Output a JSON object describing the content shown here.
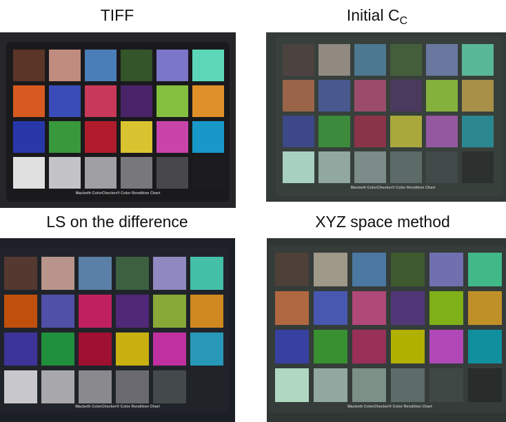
{
  "figure": {
    "caption_text": "Macbeth ColorChecker® Color Rendition Chart",
    "panels": [
      {
        "title": "TIFF",
        "background": "#262628",
        "card": "#1a1a1c",
        "patches": [
          "#5a3528",
          "#c08c80",
          "#4a7eb8",
          "#34552a",
          "#7c76c8",
          "#5cd8b8",
          "#d85a20",
          "#3a4cb8",
          "#c83858",
          "#4a2468",
          "#84c040",
          "#e09028",
          "#2838a8",
          "#38983c",
          "#b01c2c",
          "#d8c430",
          "#c844a8",
          "#1898c8",
          "#e0e0e0",
          "#c4c4c8",
          "#a0a0a4",
          "#78787c",
          "#48484c",
          "#1c1c1e"
        ]
      },
      {
        "title": "Initial C",
        "title_subscript": "C",
        "background": "#333a37",
        "card": "#38403c",
        "patches": [
          "#4c4240",
          "#908a80",
          "#4c7890",
          "#445e3c",
          "#6a78a0",
          "#58b898",
          "#9a6448",
          "#4a5890",
          "#9a4c6a",
          "#4a3a5e",
          "#84b03c",
          "#a89048",
          "#3c4888",
          "#3c8a3c",
          "#8a3448",
          "#a8a83c",
          "#9458a0",
          "#2c8890",
          "#a8d0c0",
          "#90a8a0",
          "#7c8c88",
          "#5c6a68",
          "#404a48",
          "#2c302e"
        ]
      },
      {
        "title": "LS on the difference",
        "background": "#1c2026",
        "card": "#20242a",
        "patches": [
          "#553830",
          "#b8948a",
          "#5a80a8",
          "#3c6040",
          "#9088c0",
          "#44c0a8",
          "#c0500c",
          "#5050a8",
          "#c02060",
          "#502878",
          "#88a838",
          "#d08820",
          "#3c3498",
          "#20903c",
          "#a01030",
          "#c8b010",
          "#c030a0",
          "#2898b8",
          "#c8c8cc",
          "#a8a8ac",
          "#8a8a8e",
          "#6a6a70",
          "#444a4c",
          "#202428"
        ]
      },
      {
        "title": "XYZ space method",
        "background": "#303634",
        "card": "#353c3a",
        "patches": [
          "#4c4038",
          "#a09888",
          "#4a78a0",
          "#405a30",
          "#7070b0",
          "#40b888",
          "#b06840",
          "#4858b0",
          "#b04878",
          "#503878",
          "#80b018",
          "#c09028",
          "#3840a0",
          "#389030",
          "#983058",
          "#b0b000",
          "#b048b8",
          "#10909c",
          "#b0d8c0",
          "#90a8a0",
          "#7c9088",
          "#5c6c68",
          "#404846",
          "#282c2a"
        ]
      }
    ]
  }
}
